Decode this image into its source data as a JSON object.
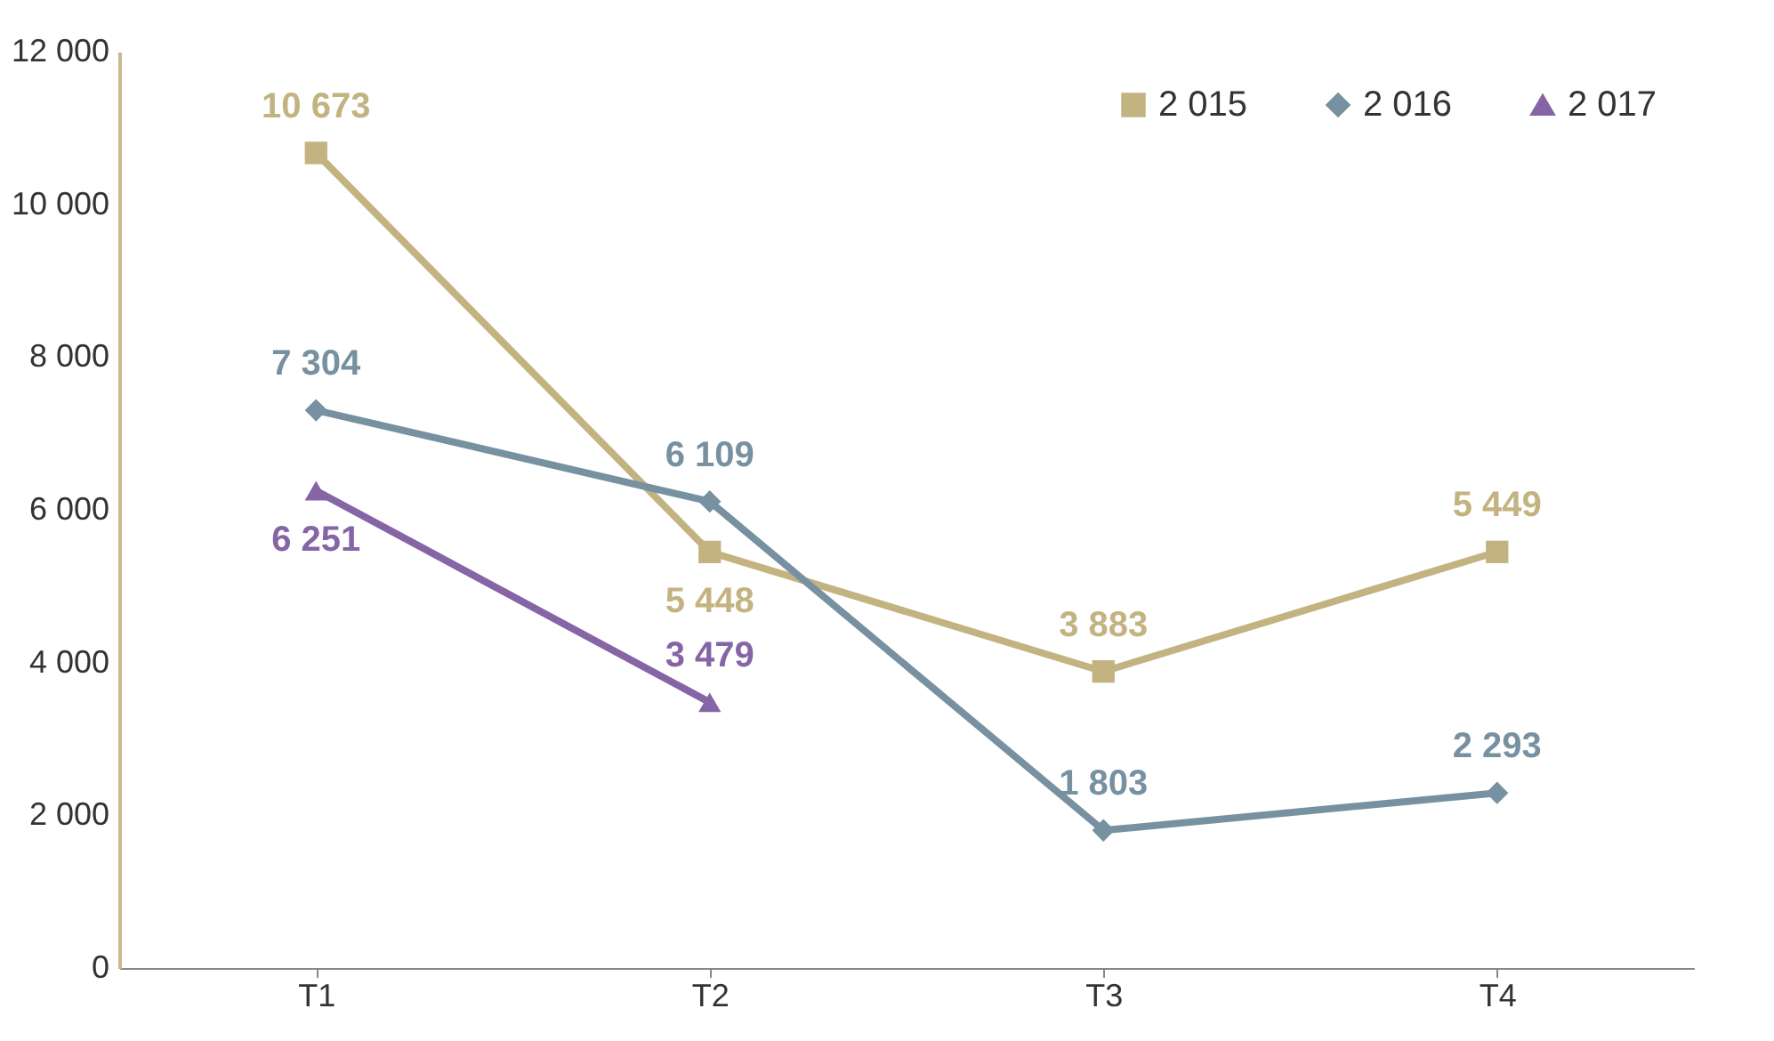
{
  "chart_data": {
    "type": "line",
    "categories": [
      "T1",
      "T2",
      "T3",
      "T4"
    ],
    "series": [
      {
        "name": "2 015",
        "color": "#c3b381",
        "marker": "square",
        "values": [
          10673,
          5448,
          3883,
          5449
        ],
        "value_labels": [
          "10 673",
          "5 448",
          "3 883",
          "5 449"
        ]
      },
      {
        "name": "2 016",
        "color": "#7791a1",
        "marker": "diamond",
        "values": [
          7304,
          6109,
          1803,
          2293
        ],
        "value_labels": [
          "7 304",
          "6 109",
          "1 803",
          "2 293"
        ]
      },
      {
        "name": "2 017",
        "color": "#8565a5",
        "marker": "triangle",
        "values": [
          6251,
          3479,
          null,
          null
        ],
        "value_labels": [
          "6 251",
          "3 479",
          null,
          null
        ]
      }
    ],
    "ylim": [
      0,
      12000
    ],
    "yticks": [
      {
        "value": 0,
        "label": "0"
      },
      {
        "value": 2000,
        "label": "2 000"
      },
      {
        "value": 4000,
        "label": "4 000"
      },
      {
        "value": 6000,
        "label": "6 000"
      },
      {
        "value": 8000,
        "label": "8 000"
      },
      {
        "value": 10000,
        "label": "10 000"
      },
      {
        "value": 12000,
        "label": "12 000"
      }
    ],
    "legend": "top right",
    "grid": false,
    "line_style": "solid"
  }
}
